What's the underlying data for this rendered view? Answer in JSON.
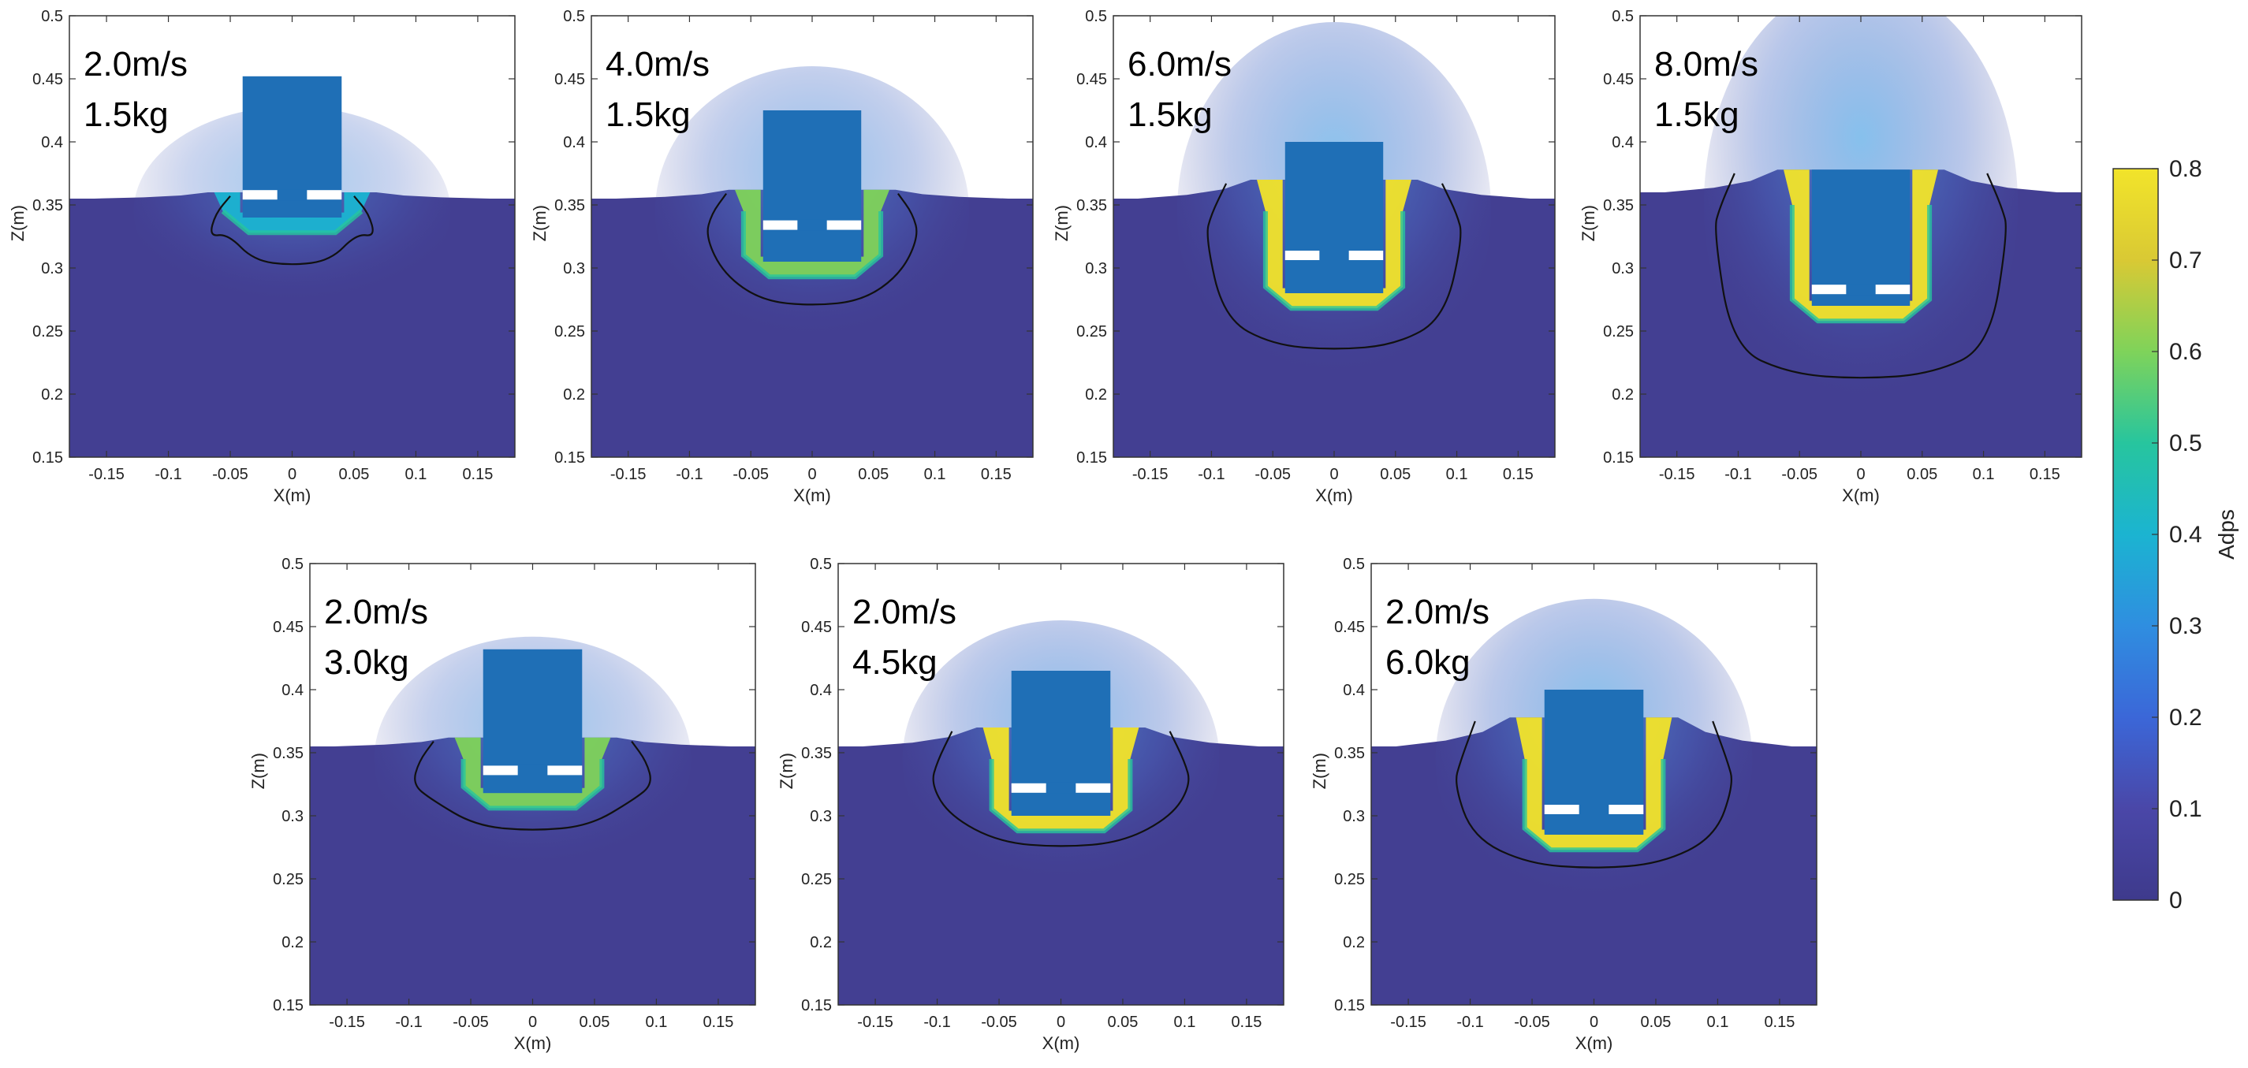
{
  "chart_data": {
    "type": "heatmap",
    "description_units": "coordinates in metres",
    "x_label": "X(m)",
    "z_label": "Z(m)",
    "x_range": [
      -0.18,
      0.18
    ],
    "z_range": [
      0.15,
      0.5
    ],
    "x_ticks": [
      "-0.15",
      "-0.1",
      "-0.05",
      "0",
      "0.05",
      "0.1",
      "0.15"
    ],
    "z_ticks": [
      "0.15",
      "0.2",
      "0.25",
      "0.3",
      "0.35",
      "0.4",
      "0.45",
      "0.5"
    ],
    "colorbar": {
      "label": "Adps",
      "min": 0,
      "max": 0.8,
      "ticks": [
        "0",
        "0.1",
        "0.2",
        "0.3",
        "0.4",
        "0.5",
        "0.6",
        "0.7",
        "0.8"
      ],
      "colors": [
        "#3e3a8c",
        "#4a47a8",
        "#3b67d8",
        "#2f8ee0",
        "#1bb4d1",
        "#27c59e",
        "#7fd35a",
        "#d9c934",
        "#f2e42a"
      ]
    },
    "colors": {
      "soil": "#433f92",
      "penetrator": "#1f6fb6",
      "contour": "#111111"
    },
    "panels": [
      {
        "speed": "2.0m/s",
        "mass": "1.5kg",
        "surface_z": 0.355,
        "tip_z": 0.34,
        "top_z": 0.452,
        "half_width": 0.04,
        "slot_z": 0.358,
        "heap_z": 0.36,
        "contour_z": 0.302,
        "contour_halfwidth": 0.062,
        "intensity": 0.35
      },
      {
        "speed": "4.0m/s",
        "mass": "1.5kg",
        "surface_z": 0.355,
        "tip_z": 0.305,
        "top_z": 0.425,
        "half_width": 0.04,
        "slot_z": 0.334,
        "heap_z": 0.362,
        "contour_z": 0.27,
        "contour_halfwidth": 0.082,
        "intensity": 0.6
      },
      {
        "speed": "6.0m/s",
        "mass": "1.5kg",
        "surface_z": 0.355,
        "tip_z": 0.28,
        "top_z": 0.4,
        "half_width": 0.04,
        "slot_z": 0.31,
        "heap_z": 0.37,
        "contour_z": 0.235,
        "contour_halfwidth": 0.1,
        "intensity": 0.8
      },
      {
        "speed": "8.0m/s",
        "mass": "1.5kg",
        "surface_z": 0.36,
        "tip_z": 0.27,
        "top_z": 0.378,
        "half_width": 0.04,
        "slot_z": 0.283,
        "heap_z": 0.378,
        "contour_z": 0.212,
        "contour_halfwidth": 0.115,
        "intensity": 0.9
      },
      {
        "speed": "2.0m/s",
        "mass": "3.0kg",
        "surface_z": 0.355,
        "tip_z": 0.318,
        "top_z": 0.432,
        "half_width": 0.04,
        "slot_z": 0.336,
        "heap_z": 0.362,
        "contour_z": 0.288,
        "contour_halfwidth": 0.092,
        "intensity": 0.55
      },
      {
        "speed": "2.0m/s",
        "mass": "4.5kg",
        "surface_z": 0.355,
        "tip_z": 0.3,
        "top_z": 0.415,
        "half_width": 0.04,
        "slot_z": 0.322,
        "heap_z": 0.37,
        "contour_z": 0.275,
        "contour_halfwidth": 0.1,
        "intensity": 0.8
      },
      {
        "speed": "2.0m/s",
        "mass": "6.0kg",
        "surface_z": 0.355,
        "tip_z": 0.285,
        "top_z": 0.4,
        "half_width": 0.04,
        "slot_z": 0.305,
        "heap_z": 0.378,
        "contour_z": 0.258,
        "contour_halfwidth": 0.108,
        "intensity": 0.85
      }
    ]
  }
}
